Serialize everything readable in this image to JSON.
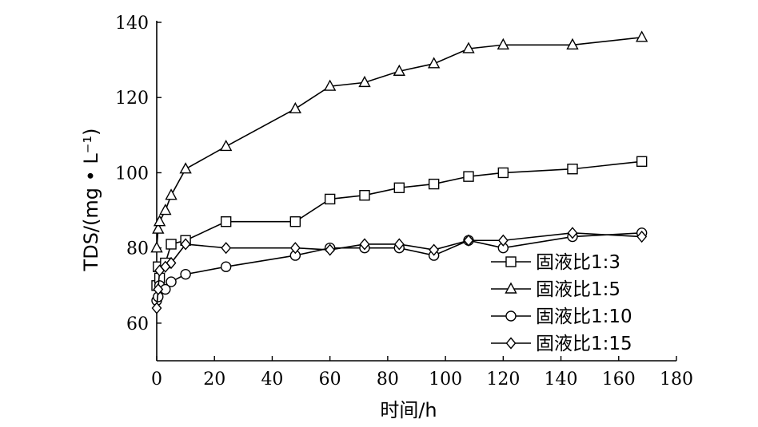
{
  "chart_data": {
    "type": "line",
    "xlabel": "时间/h",
    "ylabel": "TDS/(mg • L⁻¹)",
    "xlim": [
      0,
      180
    ],
    "ylim": [
      50,
      140
    ],
    "xticks": [
      0,
      20,
      40,
      60,
      80,
      100,
      120,
      140,
      160,
      180
    ],
    "yticks": [
      60,
      80,
      100,
      120,
      140
    ],
    "grid": false,
    "legend_position": "bottom-right",
    "series": [
      {
        "name": "固液比1:3",
        "marker": "square",
        "x": [
          0,
          0.5,
          1,
          3,
          5,
          10,
          24,
          48,
          60,
          72,
          84,
          96,
          108,
          120,
          144,
          168
        ],
        "y": [
          70,
          75,
          72,
          76,
          81,
          82,
          87,
          87,
          93,
          94,
          96,
          97,
          99,
          100,
          101,
          103
        ]
      },
      {
        "name": "固液比1:5",
        "marker": "triangle",
        "x": [
          0,
          0.5,
          1,
          3,
          5,
          10,
          24,
          48,
          60,
          72,
          84,
          96,
          108,
          120,
          144,
          168
        ],
        "y": [
          80,
          85,
          87,
          90,
          94,
          101,
          107,
          117,
          123,
          124,
          127,
          129,
          133,
          134,
          134,
          136
        ]
      },
      {
        "name": "固液比1:10",
        "marker": "circle",
        "x": [
          0,
          0.5,
          1,
          3,
          5,
          10,
          24,
          48,
          60,
          72,
          84,
          96,
          108,
          120,
          144,
          168
        ],
        "y": [
          66,
          67,
          70,
          69,
          71,
          73,
          75,
          78,
          80,
          80,
          80,
          78,
          82,
          80,
          83,
          84
        ]
      },
      {
        "name": "固液比1:15",
        "marker": "diamond",
        "x": [
          0,
          0.5,
          1,
          3,
          5,
          10,
          24,
          48,
          60,
          72,
          84,
          96,
          108,
          120,
          144,
          168
        ],
        "y": [
          64,
          69,
          74,
          75,
          76,
          81,
          80,
          80,
          79.5,
          81,
          81,
          79.5,
          82,
          82,
          84,
          83
        ]
      }
    ]
  }
}
